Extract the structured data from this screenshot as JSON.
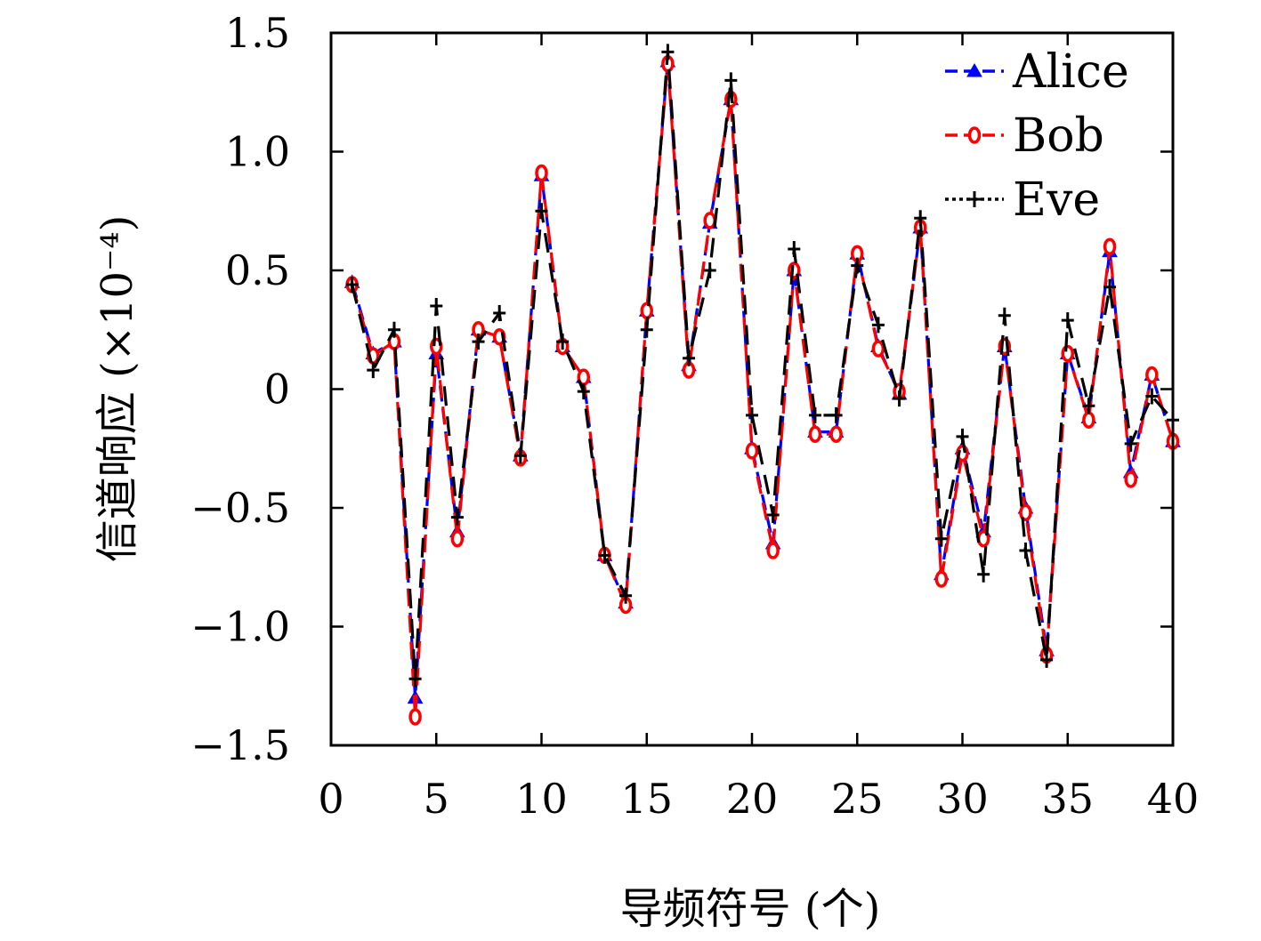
{
  "chart_data": {
    "type": "line",
    "xlabel": "导频符号 (个)",
    "ylabel": "信道响应 (×10⁻⁴)",
    "xlim": [
      0,
      40
    ],
    "ylim": [
      -1.5,
      1.5
    ],
    "x_ticks": [
      "0",
      "5",
      "10",
      "15",
      "20",
      "25",
      "30",
      "35",
      "40"
    ],
    "y_ticks": [
      "−1.5",
      "−1.0",
      "−0.5",
      "0",
      "0.5",
      "1.0",
      "1.5"
    ],
    "x_tick_values": [
      0,
      5,
      10,
      15,
      20,
      25,
      30,
      35,
      40
    ],
    "y_tick_values": [
      -1.5,
      -1.0,
      -0.5,
      0,
      0.5,
      1.0,
      1.5
    ],
    "grid": false,
    "legend_position": "top-right",
    "x": [
      1,
      2,
      3,
      4,
      5,
      6,
      7,
      8,
      9,
      10,
      11,
      12,
      13,
      14,
      15,
      16,
      17,
      18,
      19,
      20,
      21,
      22,
      23,
      24,
      25,
      26,
      27,
      28,
      29,
      30,
      31,
      32,
      33,
      34,
      35,
      36,
      37,
      38,
      39,
      40
    ],
    "series": [
      {
        "name": "Alice",
        "color": "#0000ff",
        "marker": "triangle",
        "line": "dashed",
        "values": [
          0.45,
          0.15,
          0.2,
          -1.3,
          0.15,
          -0.6,
          0.25,
          0.22,
          -0.28,
          0.9,
          0.18,
          0.05,
          -0.7,
          -0.9,
          0.33,
          1.38,
          0.1,
          0.7,
          1.22,
          -0.25,
          -0.65,
          0.5,
          -0.18,
          -0.18,
          0.57,
          0.18,
          -0.02,
          0.68,
          -0.78,
          -0.25,
          -0.6,
          0.18,
          -0.5,
          -1.1,
          0.15,
          -0.12,
          0.58,
          -0.35,
          0.06,
          -0.22
        ]
      },
      {
        "name": "Bob",
        "color": "#ff0000",
        "marker": "circle",
        "line": "dashed",
        "values": [
          0.44,
          0.14,
          0.2,
          -1.38,
          0.18,
          -0.63,
          0.25,
          0.22,
          -0.29,
          0.91,
          0.18,
          0.05,
          -0.7,
          -0.91,
          0.33,
          1.37,
          0.08,
          0.71,
          1.22,
          -0.26,
          -0.68,
          0.5,
          -0.19,
          -0.19,
          0.57,
          0.17,
          -0.01,
          0.68,
          -0.8,
          -0.27,
          -0.63,
          0.18,
          -0.52,
          -1.12,
          0.15,
          -0.13,
          0.6,
          -0.38,
          0.06,
          -0.22
        ]
      },
      {
        "name": "Eve",
        "color": "#000000",
        "marker": "plus",
        "line": "dashed",
        "values": [
          0.44,
          0.08,
          0.25,
          -1.22,
          0.35,
          -0.54,
          0.2,
          0.32,
          -0.28,
          0.75,
          0.2,
          -0.01,
          -0.7,
          -0.87,
          0.25,
          1.42,
          0.13,
          0.5,
          1.3,
          -0.11,
          -0.53,
          0.59,
          -0.11,
          -0.11,
          0.52,
          0.27,
          -0.04,
          0.72,
          -0.63,
          -0.2,
          -0.78,
          0.31,
          -0.68,
          -1.14,
          0.29,
          -0.07,
          0.43,
          -0.23,
          -0.03,
          -0.13
        ]
      }
    ]
  }
}
